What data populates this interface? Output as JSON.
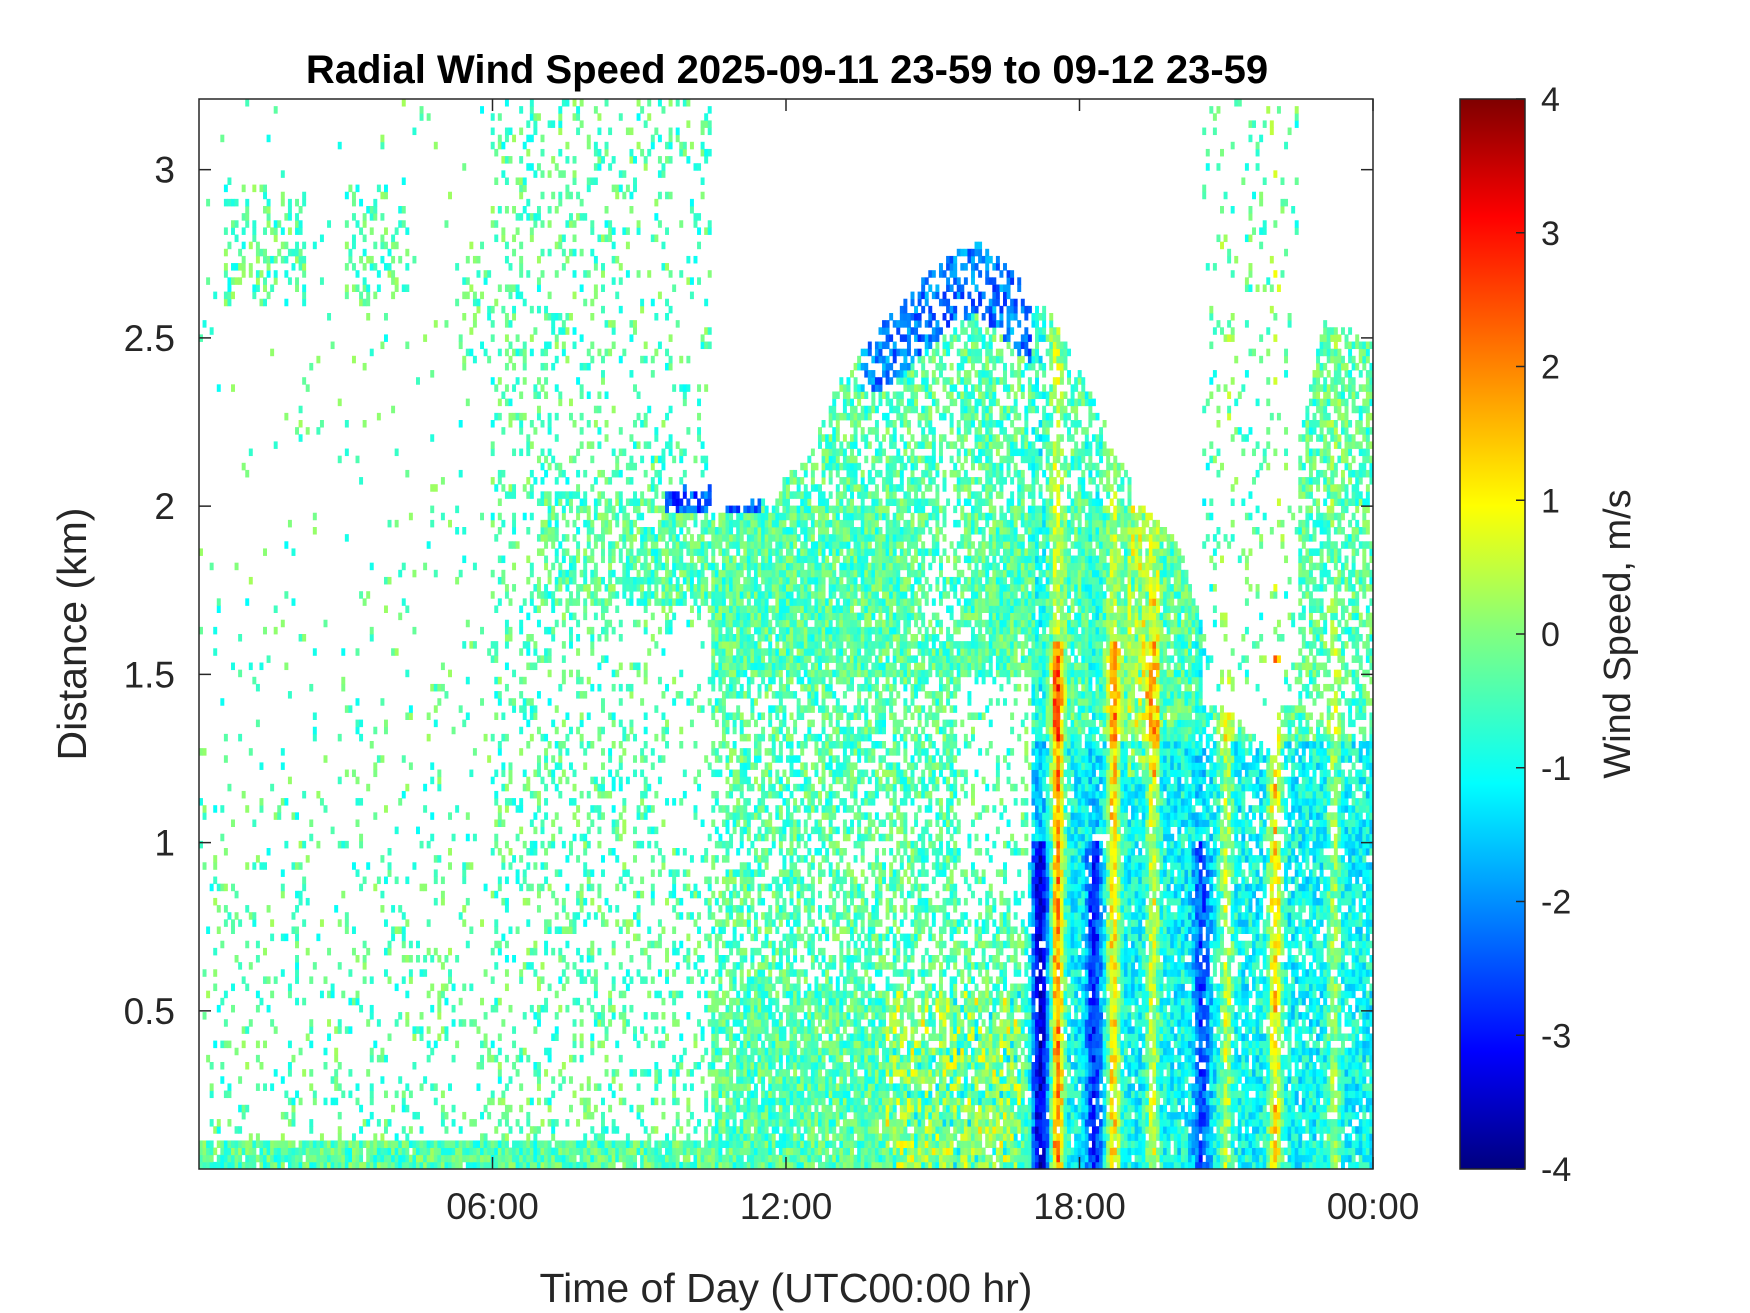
{
  "chart_data": {
    "type": "heatmap",
    "title": "Radial Wind Speed 2025-09-11 23-59 to 09-12 23-59",
    "xlabel": "Time of Day (UTC00:00 hr)",
    "ylabel": "Distance (km)",
    "x_tick_labels": [
      "06:00",
      "12:00",
      "18:00",
      "00:00"
    ],
    "x_ticks_hours": [
      6,
      12,
      18,
      24
    ],
    "xlim_hours": [
      0,
      24
    ],
    "y_ticks": [
      0.5,
      1,
      1.5,
      2,
      2.5,
      3
    ],
    "y_tick_labels": [
      "0.5",
      "1",
      "1.5",
      "2",
      "2.5",
      "3"
    ],
    "ylim": [
      0.03,
      3.21
    ],
    "colorbar": {
      "label": "Wind Speed, m/s",
      "colormap": "jet",
      "range": [
        -4,
        4
      ],
      "ticks": [
        4,
        3,
        2,
        1,
        0,
        -1,
        -2,
        -3,
        -4
      ],
      "tick_labels": [
        "4",
        "3",
        "2",
        "1",
        "0",
        "-1",
        "-2",
        "-3",
        "-4"
      ]
    },
    "grid": false,
    "legend": "none",
    "field_summary": {
      "background_velocity_m_s": [
        -0.8,
        0.3
      ],
      "strong_updraft_max_m_s": 3.5,
      "strong_downdraft_min_m_s": -2.8,
      "convective_period_hours": [
        17,
        23
      ],
      "dense_layer_top_km_evening": 2.0,
      "cloud_top_peak_km": 2.8,
      "cloud_top_peak_hour": 15.9
    }
  }
}
